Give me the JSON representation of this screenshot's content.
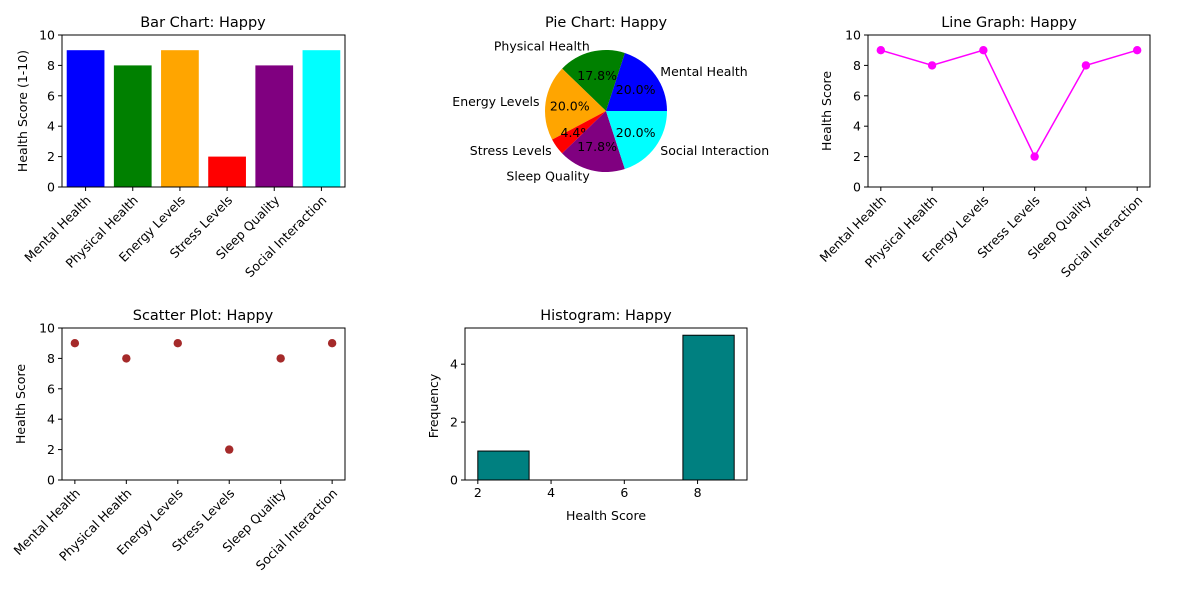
{
  "chart_data": [
    {
      "id": "bar",
      "type": "bar",
      "title": "Bar Chart: Happy",
      "ylabel": "Health Score (1-10)",
      "xlabel": "",
      "categories": [
        "Mental Health",
        "Physical Health",
        "Energy Levels",
        "Stress Levels",
        "Sleep Quality",
        "Social Interaction"
      ],
      "values": [
        9,
        8,
        9,
        2,
        8,
        9
      ],
      "colors": [
        "#0000ff",
        "#008000",
        "#ffa500",
        "#ff0000",
        "#800080",
        "#00ffff"
      ],
      "ylim": [
        0,
        10
      ],
      "yticks": [
        "0",
        "2",
        "4",
        "6",
        "8",
        "10"
      ],
      "grid": false
    },
    {
      "id": "pie",
      "type": "pie",
      "title": "Pie Chart: Happy",
      "categories": [
        "Mental Health",
        "Physical Health",
        "Energy Levels",
        "Stress Levels",
        "Sleep Quality",
        "Social Interaction"
      ],
      "values": [
        9,
        8,
        9,
        2,
        8,
        9
      ],
      "percent_labels": [
        "20.0%",
        "17.8%",
        "20.0%",
        "4.4%",
        "17.8%",
        "20.0%"
      ],
      "colors": [
        "#0000ff",
        "#008000",
        "#ffa500",
        "#ff0000",
        "#800080",
        "#00ffff"
      ]
    },
    {
      "id": "line",
      "type": "line",
      "title": "Line Graph: Happy",
      "ylabel": "Health Score",
      "xlabel": "",
      "categories": [
        "Mental Health",
        "Physical Health",
        "Energy Levels",
        "Stress Levels",
        "Sleep Quality",
        "Social Interaction"
      ],
      "values": [
        9,
        8,
        9,
        2,
        8,
        9
      ],
      "color": "#ff00ff",
      "ylim": [
        0,
        10
      ],
      "yticks": [
        "0",
        "2",
        "4",
        "6",
        "8",
        "10"
      ],
      "grid": false
    },
    {
      "id": "scatter",
      "type": "scatter",
      "title": "Scatter Plot: Happy",
      "ylabel": "Health Score",
      "xlabel": "",
      "categories": [
        "Mental Health",
        "Physical Health",
        "Energy Levels",
        "Stress Levels",
        "Sleep Quality",
        "Social Interaction"
      ],
      "values": [
        9,
        8,
        9,
        2,
        8,
        9
      ],
      "color": "#a52a2a",
      "ylim": [
        0,
        10
      ],
      "yticks": [
        "0",
        "2",
        "4",
        "6",
        "8",
        "10"
      ],
      "grid": false
    },
    {
      "id": "hist",
      "type": "bar",
      "subtype": "histogram",
      "title": "Histogram: Happy",
      "xlabel": "Health Score",
      "ylabel": "Frequency",
      "bins": [
        {
          "from": 2.0,
          "to": 3.4,
          "count": 1
        },
        {
          "from": 3.4,
          "to": 4.8,
          "count": 0
        },
        {
          "from": 4.8,
          "to": 6.2,
          "count": 0
        },
        {
          "from": 6.2,
          "to": 7.6,
          "count": 0
        },
        {
          "from": 7.6,
          "to": 9.0,
          "count": 5
        }
      ],
      "color": "#008080",
      "edgecolor": "#000000",
      "xlim": [
        1.65,
        9.35
      ],
      "ylim": [
        0,
        5.25
      ],
      "xticks": [
        2,
        4,
        6,
        8
      ],
      "yticks": [
        0,
        2,
        4
      ],
      "grid": false
    }
  ]
}
